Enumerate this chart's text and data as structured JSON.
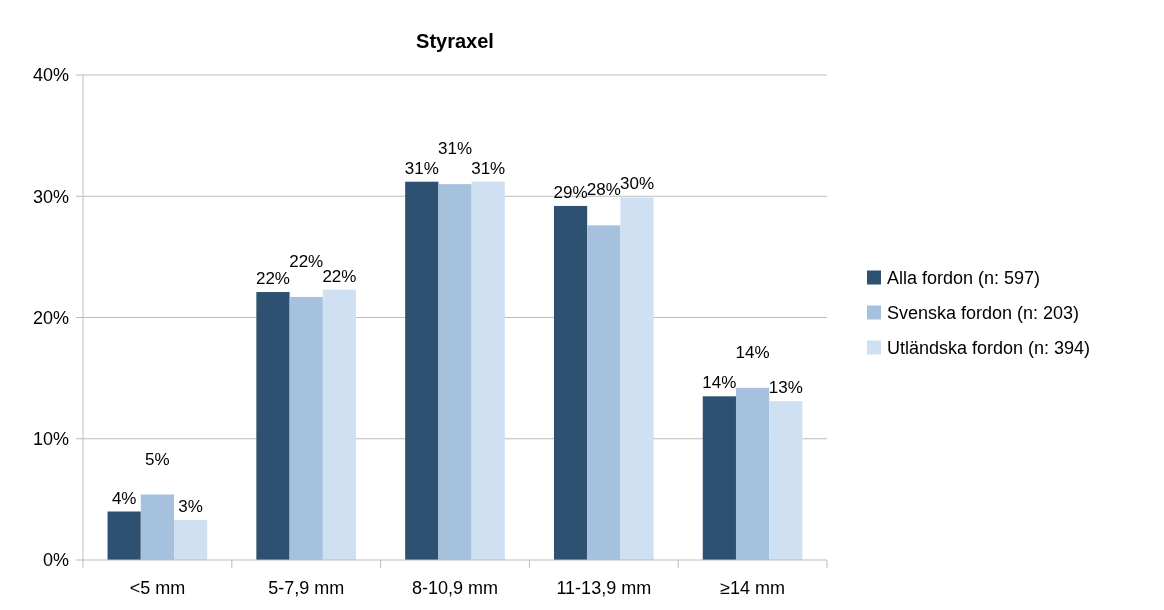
{
  "chart_data": {
    "type": "bar",
    "title": "Styraxel",
    "categories": [
      "<5 mm",
      "5-7,9 mm",
      "8-10,9 mm",
      "11-13,9 mm",
      "≥14 mm"
    ],
    "series": [
      {
        "name": "Alla fordon (n: 597)",
        "color": "#2f5171",
        "values": [
          4.0,
          22.1,
          31.2,
          29.2,
          13.5
        ],
        "value_labels": [
          "4%",
          "22%",
          "31%",
          "29%",
          "14%"
        ]
      },
      {
        "name": "Svenska fordon (n: 203)",
        "color": "#a5c1de",
        "values": [
          5.4,
          21.7,
          31.0,
          27.6,
          14.2
        ],
        "value_labels": [
          "5%",
          "22%",
          "31%",
          "28%",
          "14%"
        ]
      },
      {
        "name": "Utländska fordon (n: 394)",
        "color": "#cfe0f2",
        "values": [
          3.3,
          22.3,
          31.2,
          29.9,
          13.1
        ],
        "value_labels": [
          "3%",
          "22%",
          "31%",
          "30%",
          "13%"
        ]
      }
    ],
    "ylim": [
      0,
      40
    ],
    "yticks": [
      {
        "value": 0,
        "label": "0%"
      },
      {
        "value": 10,
        "label": "10%"
      },
      {
        "value": 20,
        "label": "20%"
      },
      {
        "value": 30,
        "label": "30%"
      },
      {
        "value": 40,
        "label": "40%"
      }
    ],
    "grid": "y",
    "legend": "right"
  }
}
